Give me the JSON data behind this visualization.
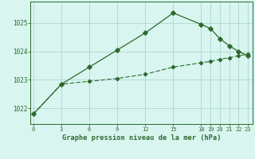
{
  "line1_x": [
    0,
    3,
    6,
    9,
    12,
    15,
    18,
    19,
    20,
    21,
    22,
    23
  ],
  "line1_y": [
    1021.8,
    1022.85,
    1023.45,
    1024.05,
    1024.65,
    1025.35,
    1024.95,
    1024.8,
    1024.45,
    1024.2,
    1024.0,
    1023.85
  ],
  "line2_x": [
    0,
    3,
    6,
    9,
    12,
    15,
    18,
    19,
    20,
    21,
    22,
    23
  ],
  "line2_y": [
    1021.8,
    1022.85,
    1022.95,
    1023.05,
    1023.2,
    1023.45,
    1023.6,
    1023.65,
    1023.72,
    1023.78,
    1023.85,
    1023.9
  ],
  "line_color": "#2d6a2d",
  "background_color": "#d8f5f0",
  "grid_color": "#a8cfc8",
  "xlabel": "Graphe pression niveau de la mer (hPa)",
  "xticks": [
    0,
    3,
    6,
    9,
    12,
    15,
    18,
    19,
    20,
    21,
    22,
    23
  ],
  "yticks": [
    1022,
    1023,
    1024,
    1025
  ],
  "xlim": [
    -0.3,
    23.5
  ],
  "ylim": [
    1021.45,
    1025.75
  ]
}
